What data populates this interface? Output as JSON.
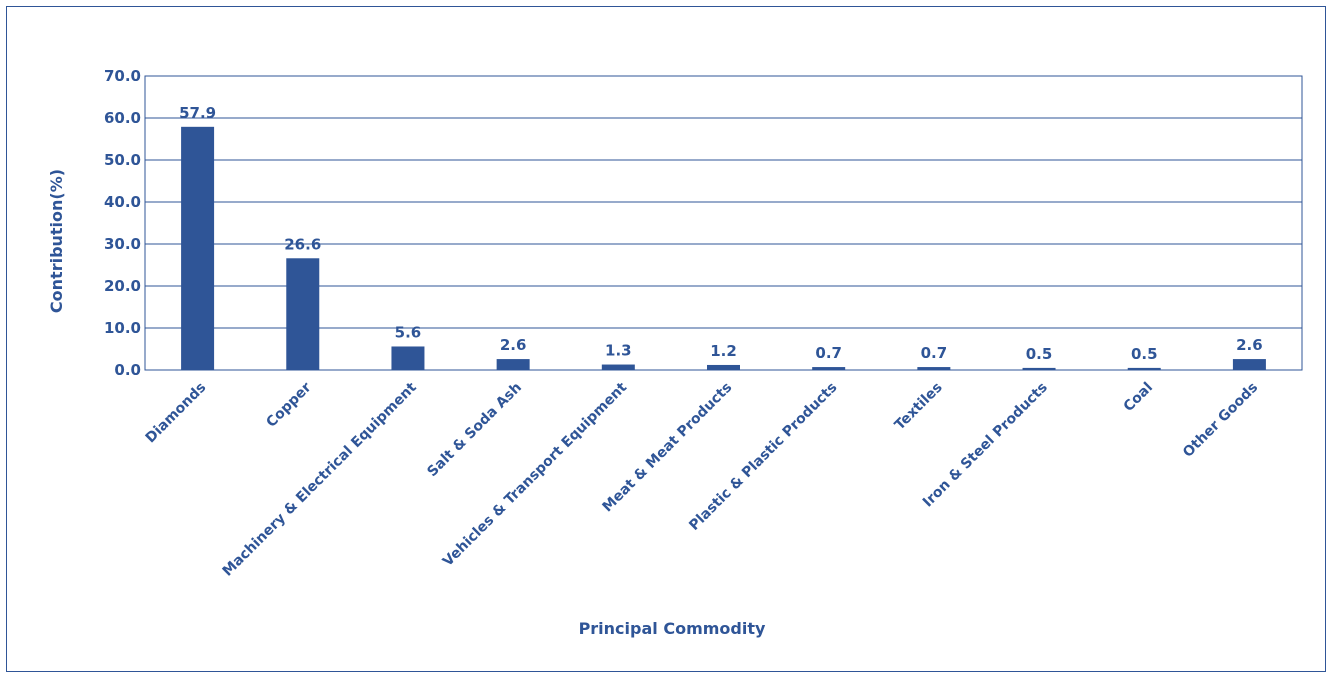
{
  "chart_data": {
    "type": "bar",
    "title": "",
    "xlabel": "Principal Commodity",
    "ylabel": "Contribution(%)",
    "categories": [
      "Diamonds",
      "Copper",
      "Machinery & Electrical Equipment",
      "Salt & Soda Ash",
      "Vehicles & Transport Equipment",
      "Meat & Meat Products",
      "Plastic & Plastic  Products",
      "Textiles",
      "Iron & Steel Products",
      "Coal",
      "Other Goods"
    ],
    "values": [
      57.9,
      26.6,
      5.6,
      2.6,
      1.3,
      1.2,
      0.7,
      0.7,
      0.5,
      0.5,
      2.6
    ],
    "data_labels": [
      "57.9",
      "26.6",
      "5.6",
      "2.6",
      "1.3",
      "1.2",
      "0.7",
      "0.7",
      "0.5",
      "0.5",
      "2.6"
    ],
    "ylim": [
      0,
      70
    ],
    "yticks": [
      "0.0",
      "10.0",
      "20.0",
      "30.0",
      "40.0",
      "50.0",
      "60.0",
      "70.0"
    ],
    "grid": true,
    "legend": "none",
    "colors": {
      "bar": "#2F5597",
      "text": "#2F5597",
      "grid": "#2F5597"
    }
  }
}
